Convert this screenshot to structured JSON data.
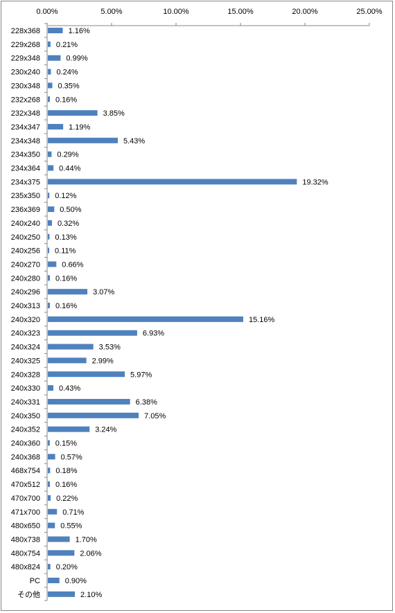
{
  "chart_data": {
    "type": "bar",
    "orientation": "horizontal",
    "title": "",
    "xlabel": "",
    "ylabel": "",
    "xlim": [
      0,
      25
    ],
    "x_ticks": [
      "0.00%",
      "5.00%",
      "10.00%",
      "15.00%",
      "20.00%",
      "25.00%"
    ],
    "x_axis_position": "top",
    "grid": false,
    "legend": "none",
    "bar_color": "#4F81BD",
    "categories": [
      "228x368",
      "229x268",
      "229x348",
      "230x240",
      "230x348",
      "232x268",
      "232x348",
      "234x347",
      "234x348",
      "234x350",
      "234x364",
      "234x375",
      "235x350",
      "236x369",
      "240x240",
      "240x250",
      "240x256",
      "240x270",
      "240x280",
      "240x296",
      "240x313",
      "240x320",
      "240x323",
      "240x324",
      "240x325",
      "240x328",
      "240x330",
      "240x331",
      "240x350",
      "240x352",
      "240x360",
      "240x368",
      "468x754",
      "470x512",
      "470x700",
      "471x700",
      "480x650",
      "480x738",
      "480x754",
      "480x824",
      "PC",
      "その他"
    ],
    "values": [
      1.16,
      0.21,
      0.99,
      0.24,
      0.35,
      0.16,
      3.85,
      1.19,
      5.43,
      0.29,
      0.44,
      19.32,
      0.12,
      0.5,
      0.32,
      0.13,
      0.11,
      0.66,
      0.16,
      3.07,
      0.16,
      15.16,
      6.93,
      3.53,
      2.99,
      5.97,
      0.43,
      6.38,
      7.05,
      3.24,
      0.15,
      0.57,
      0.18,
      0.16,
      0.22,
      0.71,
      0.55,
      1.7,
      2.06,
      0.2,
      0.9,
      2.1
    ],
    "data_labels": [
      "1.16%",
      "0.21%",
      "0.99%",
      "0.24%",
      "0.35%",
      "0.16%",
      "3.85%",
      "1.19%",
      "5.43%",
      "0.29%",
      "0.44%",
      "19.32%",
      "0.12%",
      "0.50%",
      "0.32%",
      "0.13%",
      "0.11%",
      "0.66%",
      "0.16%",
      "3.07%",
      "0.16%",
      "15.16%",
      "6.93%",
      "3.53%",
      "2.99%",
      "5.97%",
      "0.43%",
      "6.38%",
      "7.05%",
      "3.24%",
      "0.15%",
      "0.57%",
      "0.18%",
      "0.16%",
      "0.22%",
      "0.71%",
      "0.55%",
      "1.70%",
      "2.06%",
      "0.20%",
      "0.90%",
      "2.10%"
    ]
  }
}
